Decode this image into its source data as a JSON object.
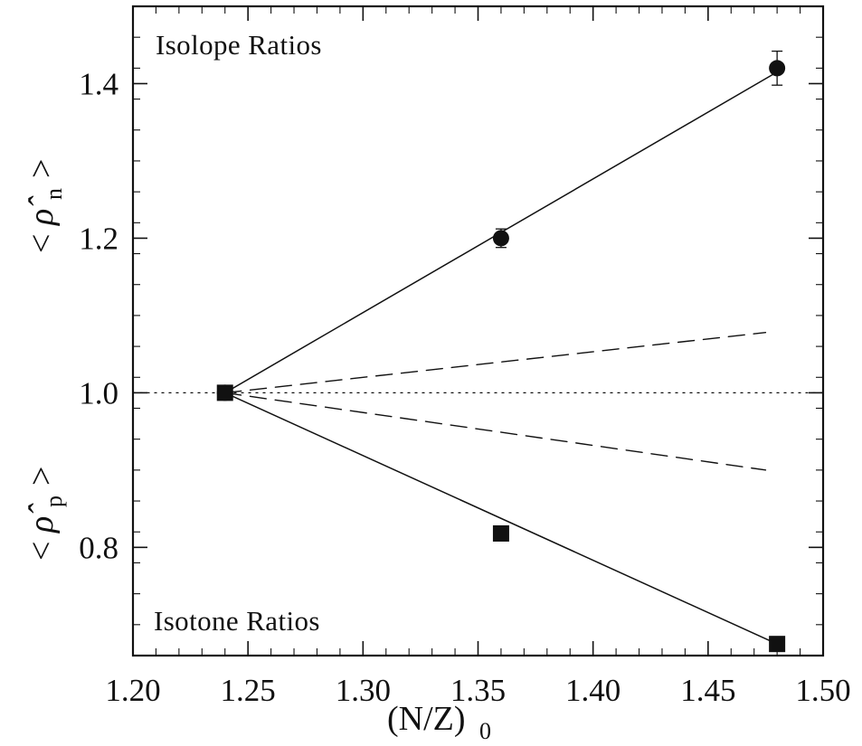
{
  "chart_data": {
    "type": "line",
    "x": [
      1.24,
      1.36,
      1.48
    ],
    "xlabel": {
      "main": "(N/Z)",
      "subscript": "0"
    },
    "ylabel_upper": {
      "left": "<",
      "symbol": "ρ̂",
      "subscript": "n",
      "right": ">"
    },
    "ylabel_lower": {
      "left": "<",
      "symbol": "ρ̂",
      "subscript": "p",
      "right": ">"
    },
    "xlim": [
      1.2,
      1.5
    ],
    "ylim": [
      0.66,
      1.5
    ],
    "x_ticks": [
      1.2,
      1.25,
      1.3,
      1.35,
      1.4,
      1.45,
      1.5
    ],
    "x_tick_labels": [
      "1.20",
      "1.25",
      "1.30",
      "1.35",
      "1.40",
      "1.45",
      "1.50"
    ],
    "y_ticks": [
      0.8,
      1.0,
      1.2,
      1.4
    ],
    "y_tick_labels": [
      "0.8",
      "1.0",
      "1.2",
      "1.4"
    ],
    "annotations": [
      "Isolope Ratios",
      "Isotone Ratios"
    ],
    "series": [
      {
        "marker": "circle",
        "x": [
          1.24,
          1.36,
          1.48
        ],
        "values": [
          1.0,
          1.2,
          1.42
        ],
        "error_bars": [
          0,
          0.012,
          0.022
        ]
      },
      {
        "marker": "square",
        "x": [
          1.24,
          1.36,
          1.48
        ],
        "values": [
          1.0,
          0.818,
          0.675
        ],
        "error_bars": [
          0,
          0,
          0
        ]
      },
      {
        "style": "solid",
        "x": [
          1.24,
          1.48
        ],
        "values": [
          1.0,
          1.415
        ]
      },
      {
        "style": "solid",
        "x": [
          1.24,
          1.48
        ],
        "values": [
          1.0,
          0.675
        ]
      },
      {
        "style": "dashed",
        "x": [
          1.24,
          1.475
        ],
        "values": [
          1.0,
          1.078
        ]
      },
      {
        "style": "dashed",
        "x": [
          1.24,
          1.475
        ],
        "values": [
          1.0,
          0.9
        ]
      },
      {
        "style": "dotted",
        "x": [
          1.2,
          1.5
        ],
        "values": [
          1.0,
          1.0
        ]
      }
    ],
    "colors": {
      "ink": "#111111",
      "background": "#ffffff"
    }
  }
}
